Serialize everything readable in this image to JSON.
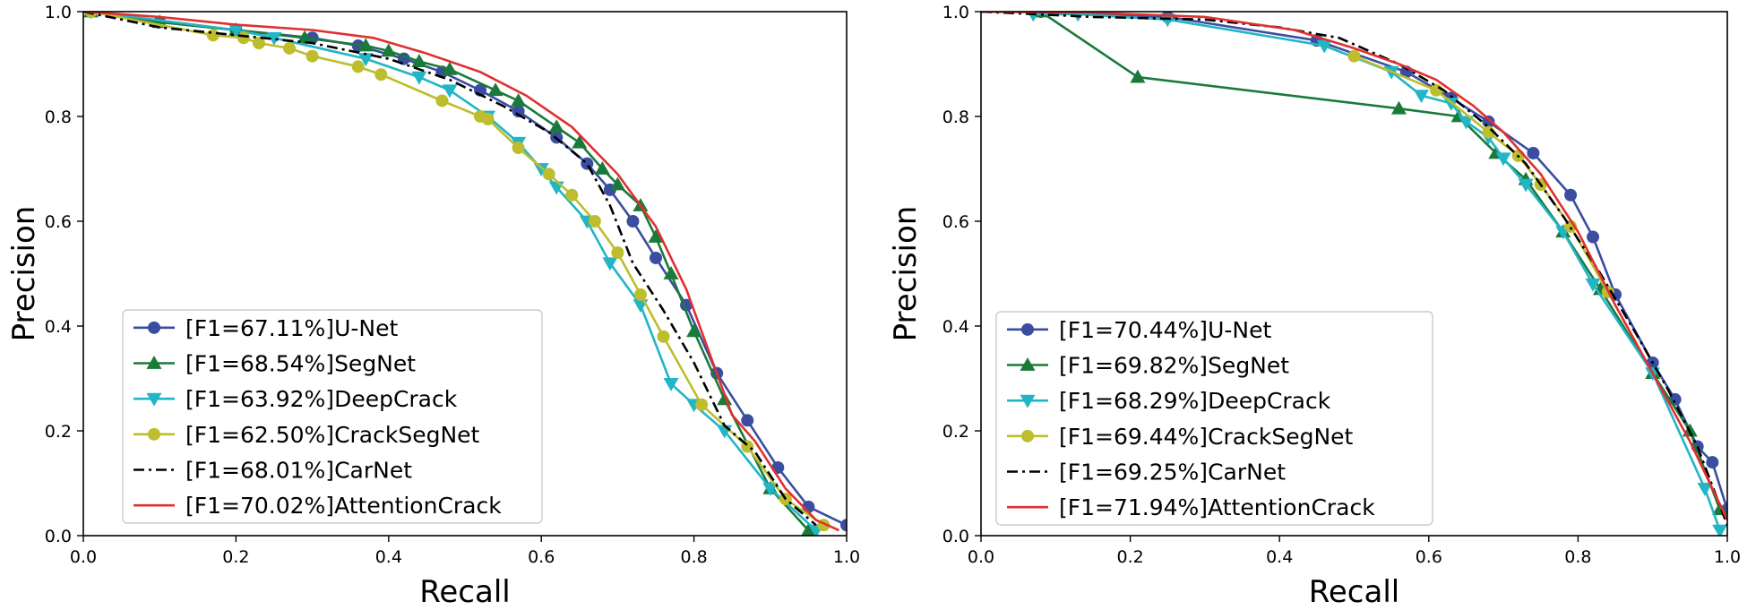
{
  "chart_data": [
    {
      "type": "line",
      "panel": "left",
      "xlabel": "Recall",
      "ylabel": "Precision",
      "xlim": [
        0.0,
        1.0
      ],
      "ylim": [
        0.0,
        1.0
      ],
      "xticks": [
        0.0,
        0.2,
        0.4,
        0.6,
        0.8,
        1.0
      ],
      "yticks": [
        0.0,
        0.2,
        0.4,
        0.6,
        0.8,
        1.0
      ],
      "xtick_labels": [
        "0.0",
        "0.2",
        "0.4",
        "0.6",
        "0.8",
        "1.0"
      ],
      "ytick_labels": [
        "0.0",
        "0.2",
        "0.4",
        "0.6",
        "0.8",
        "1.0"
      ],
      "legend_position": "lower-left",
      "series": [
        {
          "name": "[F1=67.11%]U-Net",
          "color": "#3a4da0",
          "marker": "circle",
          "x": [
            0.01,
            0.1,
            0.2,
            0.3,
            0.36,
            0.42,
            0.47,
            0.52,
            0.57,
            0.62,
            0.66,
            0.69,
            0.72,
            0.75,
            0.79,
            0.83,
            0.87,
            0.91,
            0.95,
            1.0
          ],
          "y": [
            1.0,
            0.98,
            0.965,
            0.95,
            0.935,
            0.91,
            0.885,
            0.85,
            0.81,
            0.76,
            0.71,
            0.66,
            0.6,
            0.53,
            0.44,
            0.31,
            0.22,
            0.13,
            0.055,
            0.02
          ]
        },
        {
          "name": "[F1=68.54%]SegNet",
          "color": "#1a7a3a",
          "marker": "triangle-up",
          "x": [
            0.01,
            0.1,
            0.2,
            0.29,
            0.37,
            0.4,
            0.44,
            0.48,
            0.54,
            0.57,
            0.62,
            0.65,
            0.68,
            0.7,
            0.73,
            0.75,
            0.77,
            0.8,
            0.84,
            0.9,
            0.95
          ],
          "y": [
            1.0,
            0.98,
            0.965,
            0.95,
            0.935,
            0.925,
            0.905,
            0.89,
            0.85,
            0.83,
            0.78,
            0.75,
            0.7,
            0.67,
            0.63,
            0.57,
            0.5,
            0.39,
            0.26,
            0.09,
            0.01
          ]
        },
        {
          "name": "[F1=63.92%]DeepCrack",
          "color": "#22b5c5",
          "marker": "triangle-down",
          "x": [
            0.01,
            0.2,
            0.25,
            0.37,
            0.44,
            0.48,
            0.53,
            0.57,
            0.6,
            0.62,
            0.66,
            0.69,
            0.73,
            0.77,
            0.8,
            0.84,
            0.9,
            0.96
          ],
          "y": [
            1.0,
            0.965,
            0.95,
            0.91,
            0.875,
            0.85,
            0.8,
            0.75,
            0.7,
            0.665,
            0.6,
            0.52,
            0.44,
            0.29,
            0.25,
            0.2,
            0.09,
            0.01
          ]
        },
        {
          "name": "[F1=62.50%]CrackSegNet",
          "color": "#bdbd2d",
          "marker": "circle",
          "x": [
            0.01,
            0.17,
            0.21,
            0.23,
            0.27,
            0.3,
            0.36,
            0.39,
            0.47,
            0.52,
            0.53,
            0.57,
            0.61,
            0.64,
            0.67,
            0.7,
            0.73,
            0.76,
            0.81,
            0.87,
            0.92,
            0.97
          ],
          "y": [
            1.0,
            0.955,
            0.95,
            0.94,
            0.93,
            0.915,
            0.895,
            0.88,
            0.83,
            0.8,
            0.795,
            0.74,
            0.69,
            0.65,
            0.6,
            0.54,
            0.46,
            0.38,
            0.25,
            0.17,
            0.07,
            0.02
          ]
        },
        {
          "name": "[F1=68.01%]CarNet",
          "color": "#000000",
          "marker": "none",
          "dash": "dashdot",
          "x": [
            0.0,
            0.1,
            0.2,
            0.3,
            0.4,
            0.48,
            0.55,
            0.61,
            0.66,
            0.69,
            0.72,
            0.76,
            0.8,
            0.84,
            0.88,
            0.92,
            0.96
          ],
          "y": [
            1.0,
            0.97,
            0.955,
            0.94,
            0.91,
            0.87,
            0.82,
            0.77,
            0.71,
            0.63,
            0.52,
            0.43,
            0.33,
            0.21,
            0.16,
            0.07,
            0.02
          ]
        },
        {
          "name": "[F1=70.02%]AttentionCrack",
          "color": "#e03030",
          "marker": "none",
          "x": [
            0.0,
            0.1,
            0.2,
            0.3,
            0.38,
            0.45,
            0.52,
            0.58,
            0.64,
            0.7,
            0.75,
            0.79,
            0.82,
            0.85,
            0.88,
            0.92,
            0.96,
            0.99
          ],
          "y": [
            1.0,
            0.99,
            0.975,
            0.965,
            0.95,
            0.92,
            0.885,
            0.84,
            0.78,
            0.69,
            0.59,
            0.47,
            0.35,
            0.23,
            0.18,
            0.09,
            0.03,
            0.01
          ]
        }
      ]
    },
    {
      "type": "line",
      "panel": "right",
      "xlabel": "Recall",
      "ylabel": "Precision",
      "xlim": [
        0.0,
        1.0
      ],
      "ylim": [
        0.0,
        1.0
      ],
      "xticks": [
        0.0,
        0.2,
        0.4,
        0.6,
        0.8,
        1.0
      ],
      "yticks": [
        0.0,
        0.2,
        0.4,
        0.6,
        0.8,
        1.0
      ],
      "xtick_labels": [
        "0.0",
        "0.2",
        "0.4",
        "0.6",
        "0.8",
        "1.0"
      ],
      "ytick_labels": [
        "0.0",
        "0.2",
        "0.4",
        "0.6",
        "0.8",
        "1.0"
      ],
      "legend_position": "lower-left",
      "series": [
        {
          "name": "[F1=70.44%]U-Net",
          "color": "#3a4da0",
          "marker": "circle",
          "x": [
            0.08,
            0.25,
            0.45,
            0.57,
            0.63,
            0.68,
            0.74,
            0.79,
            0.82,
            0.85,
            0.9,
            0.93,
            0.96,
            0.98,
            1.0
          ],
          "y": [
            1.0,
            0.99,
            0.945,
            0.885,
            0.835,
            0.79,
            0.73,
            0.65,
            0.57,
            0.46,
            0.33,
            0.26,
            0.17,
            0.14,
            0.05
          ]
        },
        {
          "name": "[F1=69.82%]SegNet",
          "color": "#1a7a3a",
          "marker": "triangle-up",
          "x": [
            0.08,
            0.21,
            0.56,
            0.64,
            0.69,
            0.73,
            0.78,
            0.83,
            0.9,
            0.95,
            0.99
          ],
          "y": [
            1.0,
            0.875,
            0.815,
            0.8,
            0.73,
            0.68,
            0.58,
            0.47,
            0.31,
            0.2,
            0.05
          ]
        },
        {
          "name": "[F1=68.29%]DeepCrack",
          "color": "#22b5c5",
          "marker": "triangle-down",
          "x": [
            0.07,
            0.13,
            0.25,
            0.46,
            0.55,
            0.59,
            0.63,
            0.65,
            0.68,
            0.7,
            0.73,
            0.78,
            0.82,
            0.9,
            0.97,
            0.99
          ],
          "y": [
            0.995,
            0.995,
            0.985,
            0.935,
            0.885,
            0.84,
            0.825,
            0.79,
            0.76,
            0.72,
            0.67,
            0.58,
            0.48,
            0.31,
            0.09,
            0.01
          ]
        },
        {
          "name": "[F1=69.44%]CrackSegNet",
          "color": "#bdbd2d",
          "marker": "circle",
          "x": [
            0.5,
            0.61,
            0.68,
            0.72,
            0.75,
            0.79,
            0.84
          ],
          "y": [
            0.915,
            0.85,
            0.77,
            0.725,
            0.67,
            0.59,
            0.465
          ]
        },
        {
          "name": "[F1=69.25%]CarNet",
          "color": "#000000",
          "marker": "none",
          "dash": "dashdot",
          "x": [
            0.0,
            0.15,
            0.3,
            0.4,
            0.48,
            0.56,
            0.62,
            0.68,
            0.73,
            0.78,
            0.83,
            0.88,
            0.92,
            0.96,
            1.0
          ],
          "y": [
            1.0,
            0.99,
            0.985,
            0.97,
            0.95,
            0.9,
            0.85,
            0.78,
            0.71,
            0.61,
            0.5,
            0.38,
            0.28,
            0.17,
            0.02
          ]
        },
        {
          "name": "[F1=71.94%]AttentionCrack",
          "color": "#e03030",
          "marker": "none",
          "x": [
            0.0,
            0.15,
            0.3,
            0.42,
            0.5,
            0.56,
            0.61,
            0.66,
            0.7,
            0.75,
            0.8,
            0.85,
            0.9,
            0.95,
            1.0
          ],
          "y": [
            1.0,
            0.998,
            0.99,
            0.965,
            0.93,
            0.9,
            0.87,
            0.82,
            0.77,
            0.69,
            0.58,
            0.44,
            0.31,
            0.18,
            0.03
          ]
        }
      ]
    }
  ]
}
